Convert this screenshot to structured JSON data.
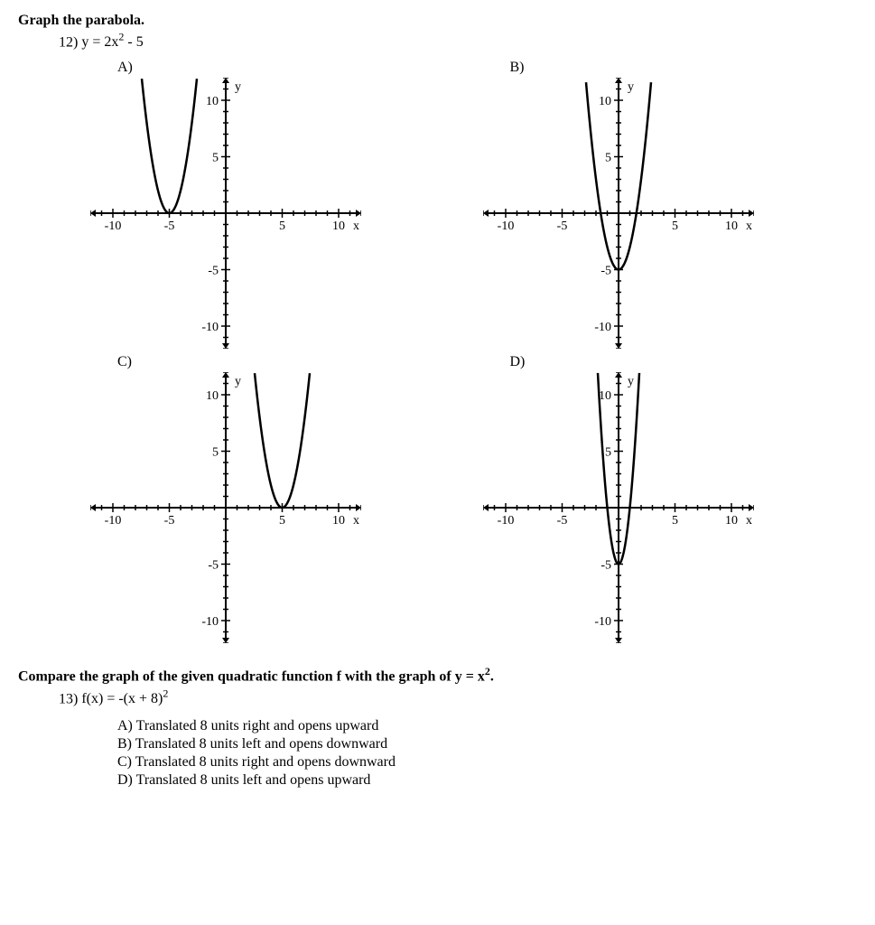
{
  "q12": {
    "section_title": "Graph the parabola.",
    "number": "12)",
    "equation_html": "y = 2x<sup>2</sup> - 5",
    "axis": {
      "xmin": -12,
      "xmax": 12,
      "ymin": -12,
      "ymax": 12,
      "tick_major": 5,
      "tick_minor": 1,
      "tick_labels_x": [
        -10,
        -5,
        5,
        10
      ],
      "tick_labels_y": [
        10,
        5,
        -5,
        -10
      ],
      "xlabel": "x",
      "ylabel": "y",
      "axis_color": "#000000",
      "tick_color": "#000000",
      "label_fontsize": 14
    },
    "choices": [
      {
        "letter": "A)",
        "vertex": [
          -5,
          0
        ],
        "a": 2,
        "curve_color": "#000000"
      },
      {
        "letter": "B)",
        "vertex": [
          0,
          -5
        ],
        "a": 2,
        "curve_color": "#000000"
      },
      {
        "letter": "C)",
        "vertex": [
          5,
          0
        ],
        "a": 2,
        "curve_color": "#000000"
      },
      {
        "letter": "D)",
        "vertex": [
          0,
          -5
        ],
        "a": 5,
        "curve_color": "#000000"
      }
    ]
  },
  "q13": {
    "section_title_html": "Compare the graph of the given quadratic function f with the graph of y = x<sup>2</sup>.",
    "number": "13)",
    "equation_html": "f(x) = -(x + 8)<sup>2</sup>",
    "choices": [
      {
        "letter": "A)",
        "text": "Translated 8 units right and opens upward"
      },
      {
        "letter": "B)",
        "text": "Translated 8 units left and opens downward"
      },
      {
        "letter": "C)",
        "text": "Translated 8 units right and opens downward"
      },
      {
        "letter": "D)",
        "text": "Translated 8 units left and opens upward"
      }
    ]
  },
  "graph_style": {
    "svg_size": 300,
    "background": "#ffffff",
    "line_width_axis": 2,
    "line_width_curve": 2.5,
    "arrow_size": 6
  }
}
